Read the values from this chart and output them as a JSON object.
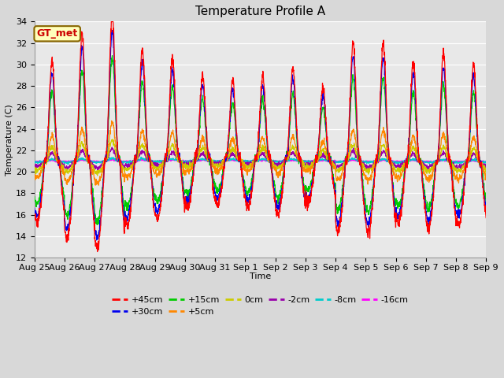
{
  "title": "Temperature Profile A",
  "xlabel": "Time",
  "ylabel": "Temperature (C)",
  "ylim": [
    12,
    34
  ],
  "yticks": [
    12,
    14,
    16,
    18,
    20,
    22,
    24,
    26,
    28,
    30,
    32,
    34
  ],
  "background_color": "#e8e8e8",
  "grid_color": "#ffffff",
  "legend_label": "GT_met",
  "series_colors": {
    "+45cm": "#ff0000",
    "+30cm": "#0000ee",
    "+15cm": "#00cc00",
    "+5cm": "#ff8800",
    "0cm": "#cccc00",
    "-2cm": "#9900aa",
    "-8cm": "#00cccc",
    "-16cm": "#ff00ff"
  },
  "xtick_labels": [
    "Aug 25",
    "Aug 26",
    "Aug 27",
    "Aug 28",
    "Aug 29",
    "Aug 30",
    "Aug 31",
    "Sep 1",
    "Sep 2",
    "Sep 3",
    "Sep 4",
    "Sep 5",
    "Sep 6",
    "Sep 7",
    "Sep 8",
    "Sep 9"
  ],
  "n_days": 15,
  "pts_per_hour": 6,
  "base_temp": 21.0,
  "title_fontsize": 11,
  "axis_fontsize": 8,
  "tick_fontsize": 8,
  "legend_fontsize": 8
}
